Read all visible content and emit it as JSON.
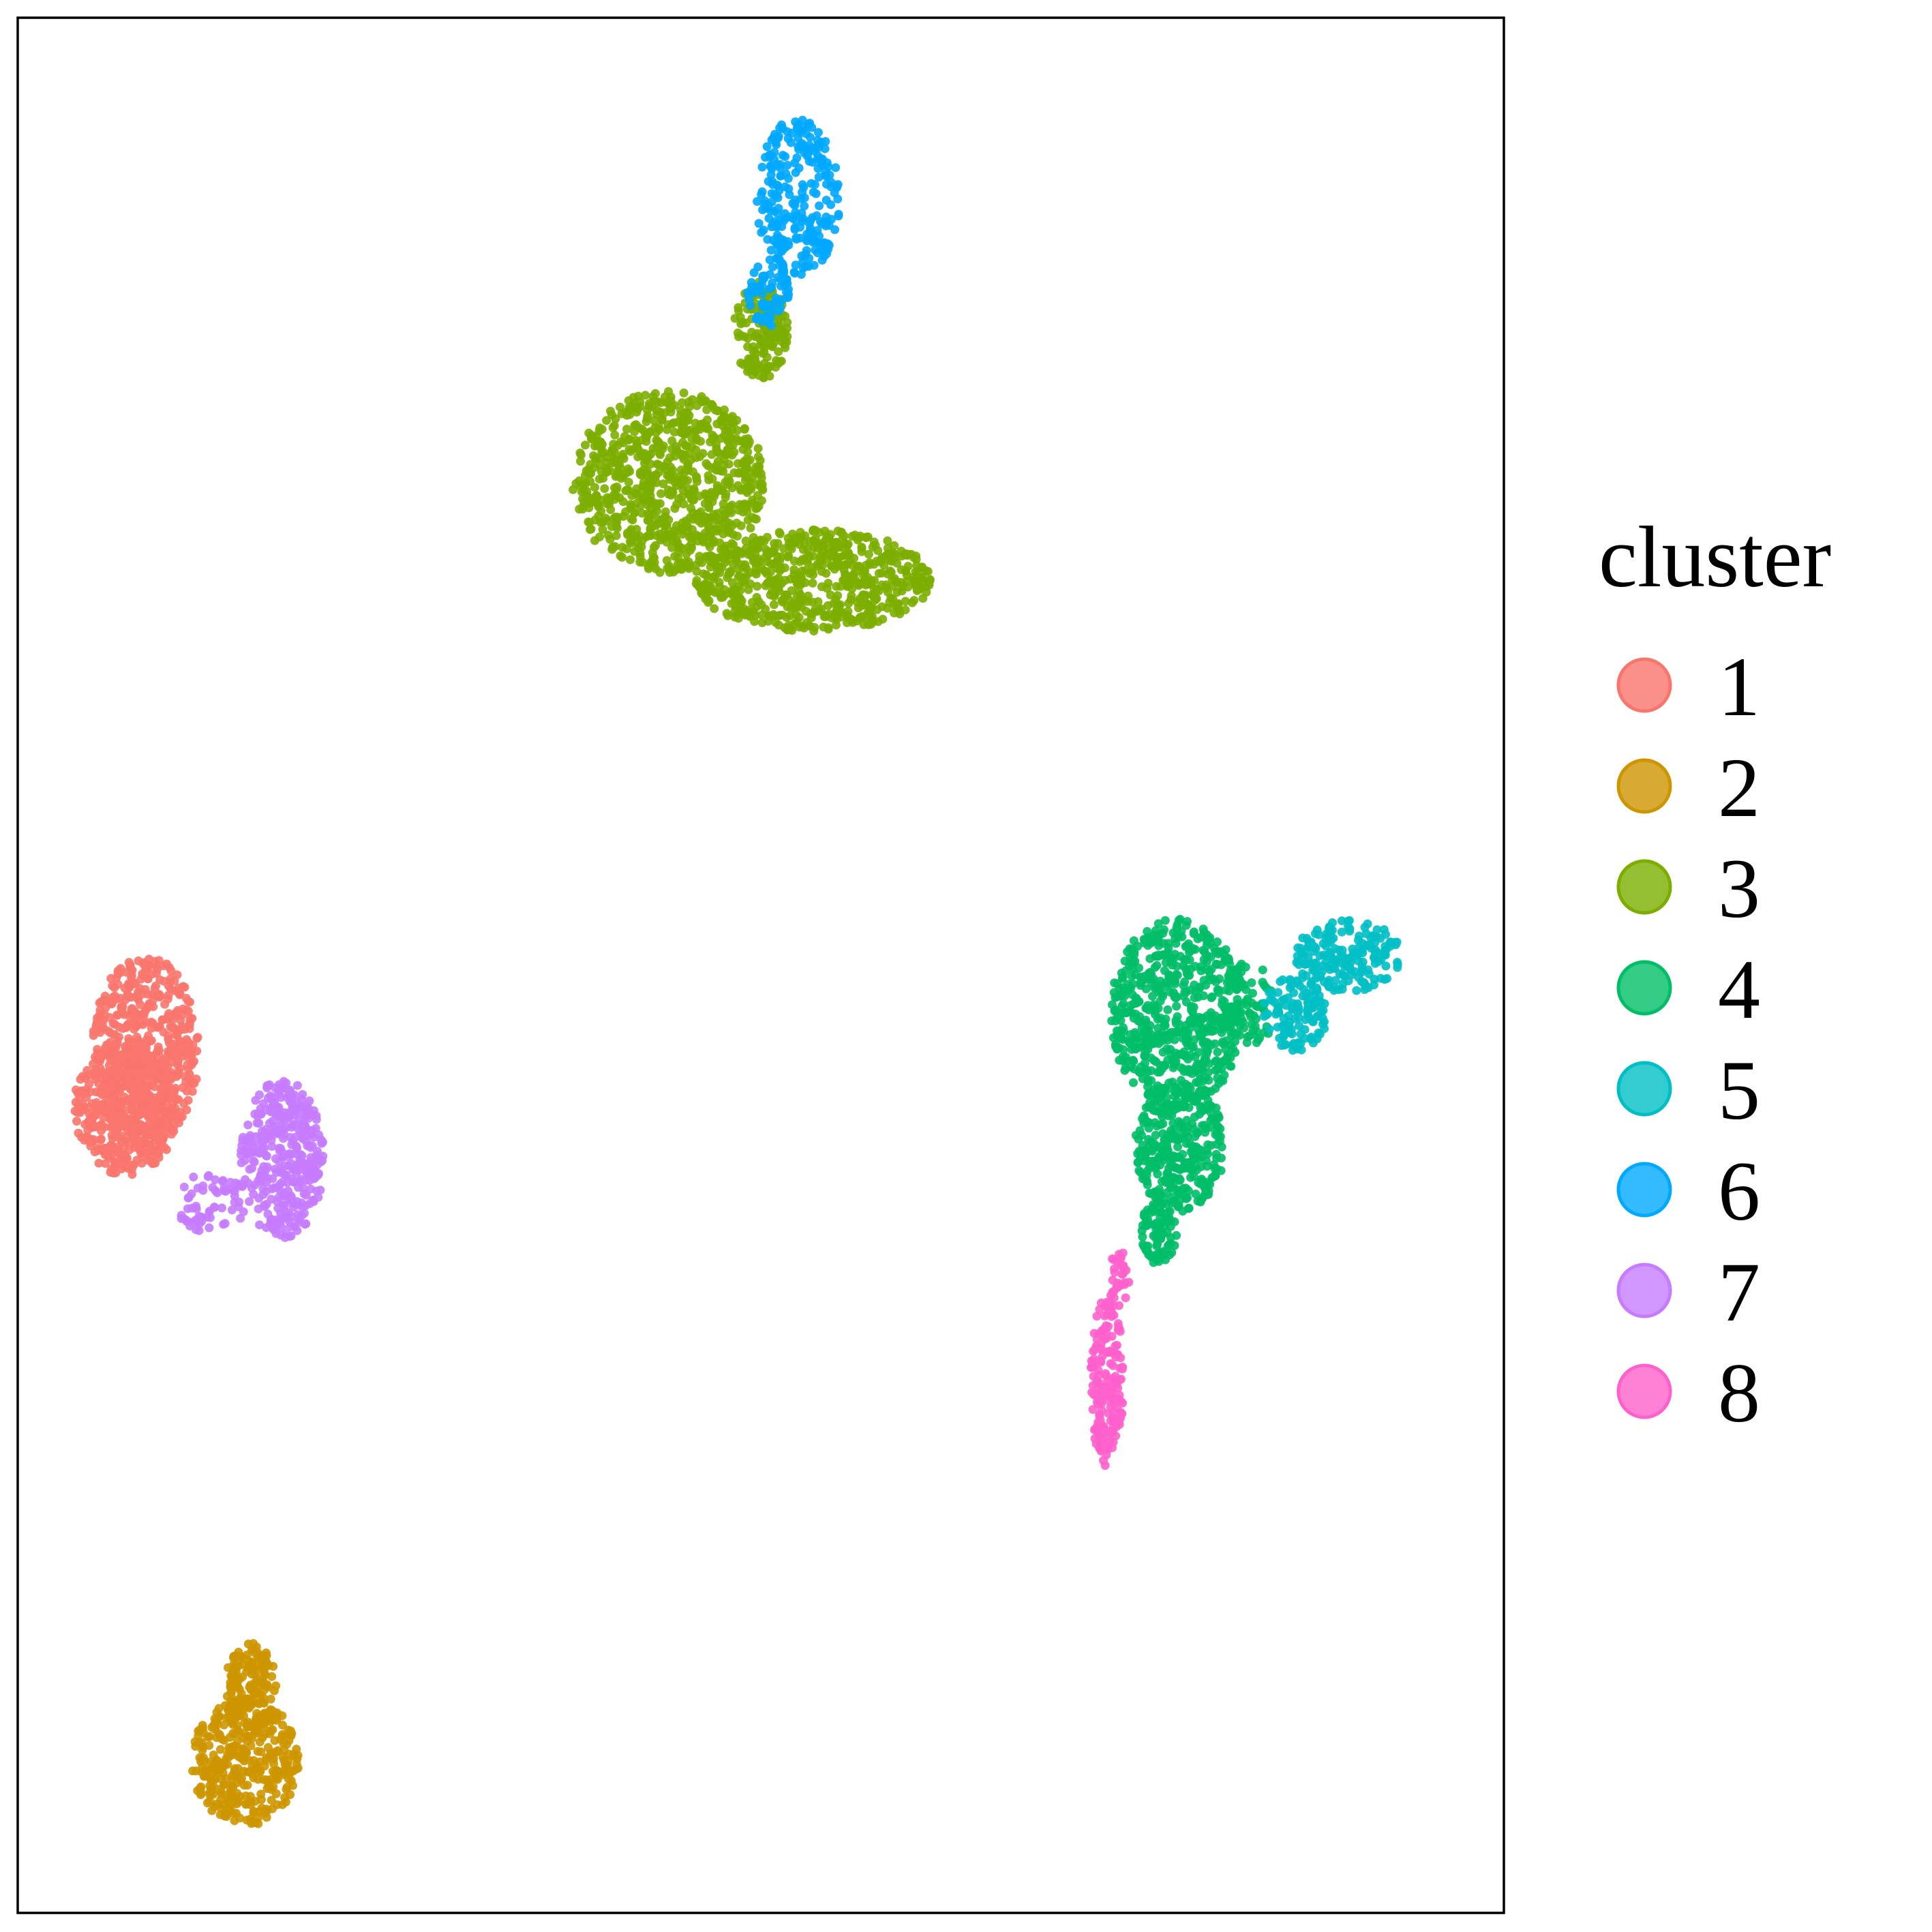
{
  "chart_data": {
    "type": "scatter",
    "title": "",
    "xlabel": "",
    "ylabel": "",
    "xlim": [
      0,
      100
    ],
    "ylim": [
      0,
      100
    ],
    "grid": false,
    "axes_ticks": false,
    "legend": {
      "title": "cluster",
      "placement": "right",
      "entries": [
        {
          "label": "1",
          "color": "#F8766D"
        },
        {
          "label": "2",
          "color": "#CD9600"
        },
        {
          "label": "3",
          "color": "#7CAE00"
        },
        {
          "label": "4",
          "color": "#00BE67"
        },
        {
          "label": "5",
          "color": "#00BFC4"
        },
        {
          "label": "6",
          "color": "#00A9FF"
        },
        {
          "label": "7",
          "color": "#C77CFF"
        },
        {
          "label": "8",
          "color": "#FF61CC"
        }
      ]
    },
    "series": [
      {
        "name": "1",
        "color": "#F8766D",
        "count": 950,
        "regions": [
          {
            "cx": 8.6,
            "cy": 45.5,
            "rx": 3.6,
            "ry": 5.0,
            "w": 0.55
          },
          {
            "cx": 7.3,
            "cy": 42.5,
            "rx": 3.5,
            "ry": 3.6,
            "w": 0.45
          }
        ]
      },
      {
        "name": "2",
        "color": "#CD9600",
        "count": 500,
        "regions": [
          {
            "cx": 15.3,
            "cy": 8.0,
            "rx": 3.6,
            "ry": 3.4,
            "w": 0.75
          },
          {
            "cx": 15.7,
            "cy": 12.0,
            "rx": 1.7,
            "ry": 2.3,
            "w": 0.25
          }
        ]
      },
      {
        "name": "3",
        "color": "#7CAE00",
        "count": 1600,
        "regions": [
          {
            "cx": 43.8,
            "cy": 75.5,
            "rx": 6.5,
            "ry": 4.8,
            "w": 0.5
          },
          {
            "cx": 53.5,
            "cy": 70.3,
            "rx": 8.0,
            "ry": 2.7,
            "w": 0.4
          },
          {
            "cx": 50.0,
            "cy": 83.5,
            "rx": 1.8,
            "ry": 2.6,
            "w": 0.1
          }
        ]
      },
      {
        "name": "4",
        "color": "#00BE67",
        "count": 1100,
        "regions": [
          {
            "cx": 78.0,
            "cy": 47.5,
            "rx": 4.5,
            "ry": 5.0,
            "w": 0.55
          },
          {
            "cx": 78.2,
            "cy": 40.5,
            "rx": 3.0,
            "ry": 3.5,
            "w": 0.3
          },
          {
            "cx": 76.8,
            "cy": 36.0,
            "rx": 1.2,
            "ry": 1.8,
            "w": 0.08
          },
          {
            "cx": 83.0,
            "cy": 48.0,
            "rx": 2.0,
            "ry": 2.2,
            "w": 0.07
          }
        ]
      },
      {
        "name": "5",
        "color": "#00BFC4",
        "count": 300,
        "regions": [
          {
            "cx": 89.5,
            "cy": 50.5,
            "rx": 3.6,
            "ry": 1.9,
            "w": 0.6
          },
          {
            "cx": 86.0,
            "cy": 47.5,
            "rx": 2.2,
            "ry": 2.0,
            "w": 0.4
          }
        ]
      },
      {
        "name": "6",
        "color": "#00A9FF",
        "count": 320,
        "regions": [
          {
            "cx": 52.5,
            "cy": 90.5,
            "rx": 2.8,
            "ry": 4.2,
            "w": 0.8
          },
          {
            "cx": 50.5,
            "cy": 85.5,
            "rx": 1.4,
            "ry": 1.8,
            "w": 0.2
          }
        ]
      },
      {
        "name": "7",
        "color": "#C77CFF",
        "count": 420,
        "regions": [
          {
            "cx": 17.8,
            "cy": 39.8,
            "rx": 2.8,
            "ry": 4.2,
            "w": 0.85
          },
          {
            "cx": 13.0,
            "cy": 37.5,
            "rx": 2.5,
            "ry": 1.6,
            "w": 0.15
          }
        ]
      },
      {
        "name": "8",
        "color": "#FF61CC",
        "count": 200,
        "regions": [
          {
            "cx": 73.3,
            "cy": 28.0,
            "rx": 1.1,
            "ry": 4.5,
            "w": 0.85
          },
          {
            "cx": 74.0,
            "cy": 33.5,
            "rx": 0.8,
            "ry": 1.5,
            "w": 0.15
          }
        ]
      }
    ]
  }
}
